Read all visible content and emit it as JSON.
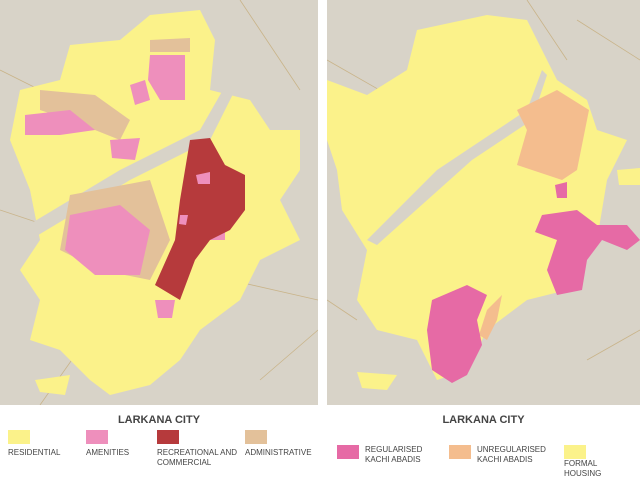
{
  "panels": [
    {
      "title": "LARKANA CITY",
      "legend": [
        {
          "label": "RESIDENTIAL",
          "color": "#fbf28a"
        },
        {
          "label": "AMENITIES",
          "color": "#ee8fbc"
        },
        {
          "label": "RECREATIONAL AND COMMERCIAL",
          "color": "#b63a3c"
        },
        {
          "label": "ADMINISTRATIVE",
          "color": "#e3c19a"
        }
      ]
    },
    {
      "title": "LARKANA CITY",
      "legend": [
        {
          "label": "REGULARISED KACHI ABADIS",
          "color": "#e66aa5"
        },
        {
          "label": "UNREGULARISED KACHI ABADIS",
          "color": "#f4bd8e"
        },
        {
          "label": "FORMAL HOUSING",
          "color": "#fbf28a"
        }
      ]
    }
  ]
}
